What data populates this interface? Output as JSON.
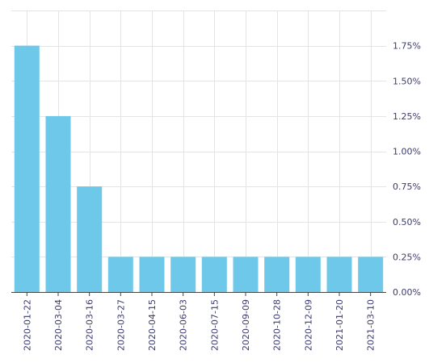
{
  "chart_data": {
    "type": "bar",
    "categories": [
      "2020-01-22",
      "2020-03-04",
      "2020-03-16",
      "2020-03-27",
      "2020-04-15",
      "2020-06-03",
      "2020-07-15",
      "2020-09-09",
      "2020-10-28",
      "2020-12-09",
      "2021-01-20",
      "2021-03-10"
    ],
    "values": [
      1.75,
      1.25,
      0.75,
      0.25,
      0.25,
      0.25,
      0.25,
      0.25,
      0.25,
      0.25,
      0.25,
      0.25
    ],
    "value_unit": "%",
    "ylim": [
      0,
      2.0
    ],
    "yticks": [
      0,
      0.25,
      0.5,
      0.75,
      1.0,
      1.25,
      1.5,
      1.75
    ],
    "ytick_labels": [
      "0.00%",
      "0.25%",
      "0.50%",
      "0.75%",
      "1.00%",
      "1.25%",
      "1.50%",
      "1.75%"
    ],
    "y_axis_side": "right",
    "grid": true,
    "legend": "none",
    "title": "",
    "xlabel": "",
    "ylabel": "",
    "colors": {
      "bar": "#6ec8e9",
      "grid": "#e4e4e4",
      "axis": "#444444",
      "tick_text": "#3c3b6e"
    }
  }
}
